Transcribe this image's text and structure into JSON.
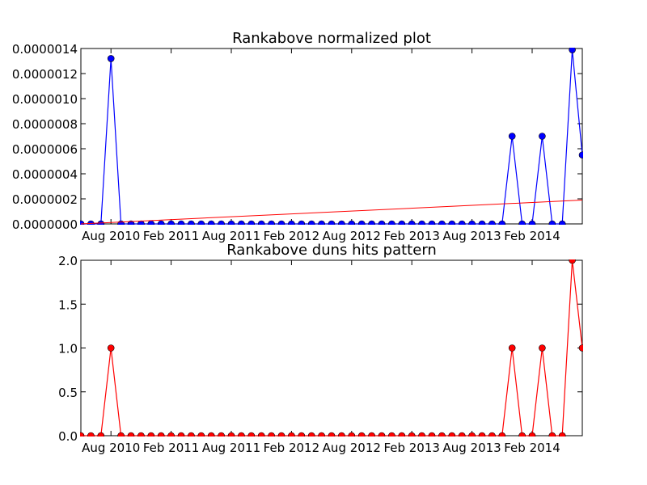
{
  "chart_data": [
    {
      "type": "line",
      "title": "Rankabove normalized plot",
      "xlabel": "",
      "ylabel": "",
      "x_tick_labels": [
        "Aug 2010",
        "Feb 2011",
        "Aug 2011",
        "Feb 2012",
        "Aug 2012",
        "Feb 2013",
        "Aug 2013",
        "Feb 2014"
      ],
      "y_tick_labels": [
        "0.0000000",
        "0.0000002",
        "0.0000004",
        "0.0000006",
        "0.0000008",
        "0.0000010",
        "0.0000012",
        "0.0000014"
      ],
      "ylim": [
        0,
        1.4e-06
      ],
      "months": [
        "2010-05",
        "2010-06",
        "2010-07",
        "2010-08",
        "2010-09",
        "2010-10",
        "2010-11",
        "2010-12",
        "2011-01",
        "2011-02",
        "2011-03",
        "2011-04",
        "2011-05",
        "2011-06",
        "2011-07",
        "2011-08",
        "2011-09",
        "2011-10",
        "2011-11",
        "2011-12",
        "2012-01",
        "2012-02",
        "2012-03",
        "2012-04",
        "2012-05",
        "2012-06",
        "2012-07",
        "2012-08",
        "2012-09",
        "2012-10",
        "2012-11",
        "2012-12",
        "2013-01",
        "2013-02",
        "2013-03",
        "2013-04",
        "2013-05",
        "2013-06",
        "2013-07",
        "2013-08",
        "2013-09",
        "2013-10",
        "2013-11",
        "2013-12",
        "2014-01",
        "2014-02",
        "2014-03",
        "2014-04",
        "2014-05",
        "2014-06",
        "2014-07"
      ],
      "series": [
        {
          "values": [
            0,
            0,
            0,
            1.32e-06,
            0,
            0,
            0,
            0,
            0,
            0,
            0,
            0,
            0,
            0,
            0,
            0,
            0,
            0,
            0,
            0,
            0,
            0,
            0,
            0,
            0,
            0,
            0,
            0,
            0,
            0,
            0,
            0,
            0,
            0,
            0,
            0,
            0,
            0,
            0,
            0,
            0,
            0,
            0,
            7e-07,
            0,
            0,
            7e-07,
            0,
            0,
            1.39e-06,
            5.5e-07
          ],
          "color": "#0000ff",
          "marker": "circle"
        },
        {
          "trend_line": [
            0,
            1.9e-07
          ],
          "color": "#ff0000",
          "marker": "none"
        }
      ],
      "grid": false
    },
    {
      "type": "line",
      "title": "Rankabove duns hits pattern",
      "xlabel": "",
      "ylabel": "",
      "x_tick_labels": [
        "Aug 2010",
        "Feb 2011",
        "Aug 2011",
        "Feb 2012",
        "Aug 2012",
        "Feb 2013",
        "Aug 2013",
        "Feb 2014"
      ],
      "y_tick_labels": [
        "0.0",
        "0.5",
        "1.0",
        "1.5",
        "2.0"
      ],
      "ylim": [
        0,
        2
      ],
      "months": [
        "2010-05",
        "2010-06",
        "2010-07",
        "2010-08",
        "2010-09",
        "2010-10",
        "2010-11",
        "2010-12",
        "2011-01",
        "2011-02",
        "2011-03",
        "2011-04",
        "2011-05",
        "2011-06",
        "2011-07",
        "2011-08",
        "2011-09",
        "2011-10",
        "2011-11",
        "2011-12",
        "2012-01",
        "2012-02",
        "2012-03",
        "2012-04",
        "2012-05",
        "2012-06",
        "2012-07",
        "2012-08",
        "2012-09",
        "2012-10",
        "2012-11",
        "2012-12",
        "2013-01",
        "2013-02",
        "2013-03",
        "2013-04",
        "2013-05",
        "2013-06",
        "2013-07",
        "2013-08",
        "2013-09",
        "2013-10",
        "2013-11",
        "2013-12",
        "2014-01",
        "2014-02",
        "2014-03",
        "2014-04",
        "2014-05",
        "2014-06",
        "2014-07"
      ],
      "series": [
        {
          "values": [
            0,
            0,
            0,
            1,
            0,
            0,
            0,
            0,
            0,
            0,
            0,
            0,
            0,
            0,
            0,
            0,
            0,
            0,
            0,
            0,
            0,
            0,
            0,
            0,
            0,
            0,
            0,
            0,
            0,
            0,
            0,
            0,
            0,
            0,
            0,
            0,
            0,
            0,
            0,
            0,
            0,
            0,
            0,
            1,
            0,
            0,
            1,
            0,
            0,
            2,
            1
          ],
          "color": "#ff0000",
          "marker": "circle"
        }
      ],
      "grid": false
    }
  ]
}
